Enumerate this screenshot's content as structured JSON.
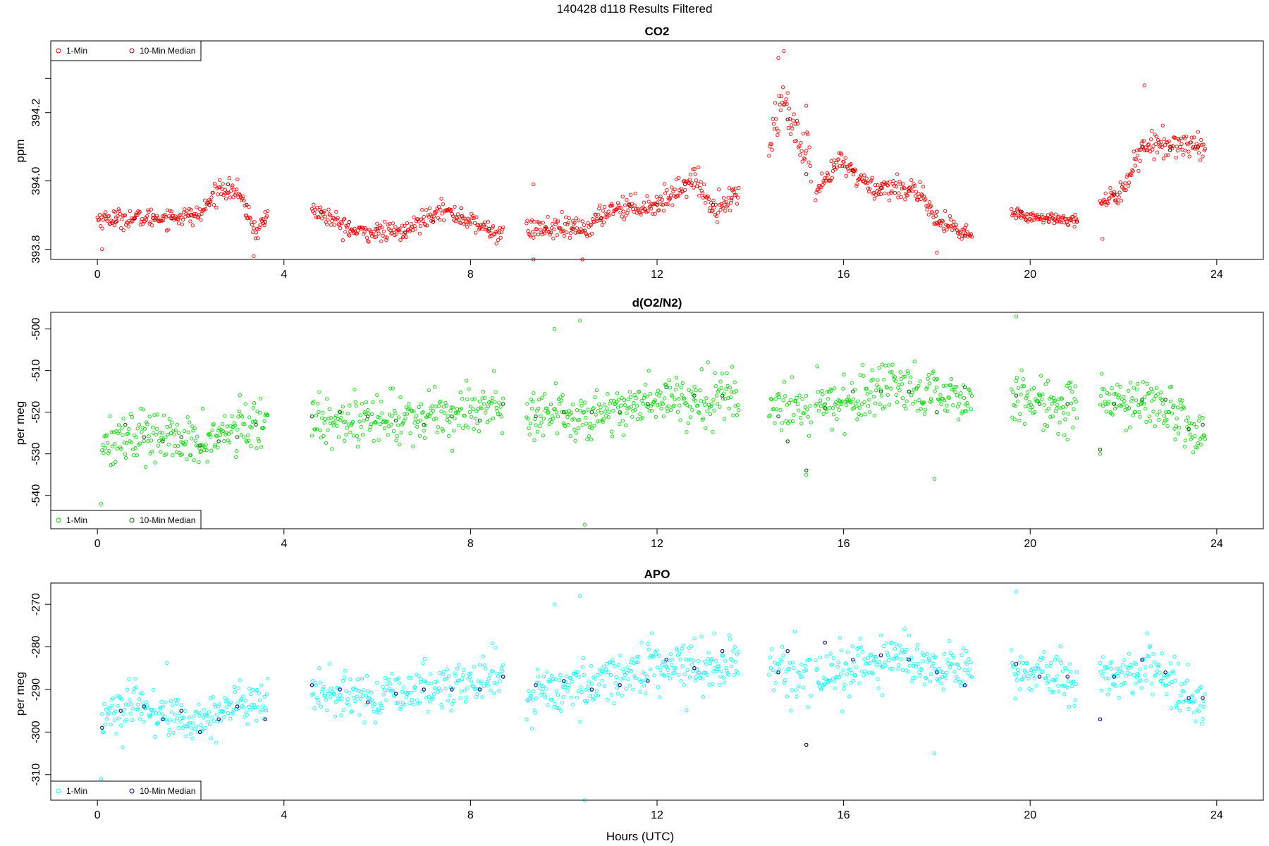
{
  "figure": {
    "title": "140428   d118   Results Filtered",
    "xlabel": "Hours (UTC)"
  },
  "chart_data": [
    {
      "type": "scatter",
      "title": "CO2",
      "ylabel": "ppm",
      "xlabel": "",
      "xlim": [
        -1.0,
        25.0
      ],
      "ylim": [
        393.77,
        394.41
      ],
      "x_ticks": [
        0,
        4,
        8,
        12,
        16,
        20,
        24
      ],
      "y_ticks": [
        393.8,
        394.0,
        394.2
      ],
      "y_tick_labels": [
        "393.8",
        "394.0",
        "394.2"
      ],
      "extra_y_ticks": [
        394.3
      ],
      "legend": {
        "placement": "top-left",
        "entries": [
          "1-Min",
          "10-Min Median"
        ]
      },
      "colors": {
        "one_min": "#ff0000",
        "median": "#8b0000"
      },
      "segments": [
        {
          "t0": 0.0,
          "t1": 3.65,
          "shape": [
            [
              0.0,
              393.89
            ],
            [
              1.0,
              393.89
            ],
            [
              2.2,
              393.9
            ],
            [
              2.6,
              393.98
            ],
            [
              3.0,
              393.97
            ],
            [
              3.4,
              393.85
            ],
            [
              3.65,
              393.9
            ]
          ],
          "noise": 0.025,
          "n": 210
        },
        {
          "t0": 4.6,
          "t1": 8.7,
          "shape": [
            [
              4.6,
              393.92
            ],
            [
              5.5,
              393.85
            ],
            [
              6.6,
              393.85
            ],
            [
              7.3,
              393.92
            ],
            [
              8.0,
              393.88
            ],
            [
              8.7,
              393.84
            ]
          ],
          "noise": 0.025,
          "n": 230
        },
        {
          "t0": 9.2,
          "t1": 13.75,
          "shape": [
            [
              9.2,
              393.86
            ],
            [
              10.5,
              393.86
            ],
            [
              11.0,
              393.92
            ],
            [
              12.0,
              393.93
            ],
            [
              12.8,
              394.01
            ],
            [
              13.2,
              393.92
            ],
            [
              13.75,
              393.96
            ]
          ],
          "noise": 0.03,
          "n": 270
        },
        {
          "t0": 14.4,
          "t1": 15.3,
          "shape": [
            [
              14.4,
              394.1
            ],
            [
              14.7,
              394.25
            ],
            [
              15.0,
              394.12
            ],
            [
              15.3,
              394.05
            ]
          ],
          "noise": 0.06,
          "n": 55
        },
        {
          "t0": 15.4,
          "t1": 18.75,
          "shape": [
            [
              15.4,
              393.95
            ],
            [
              15.9,
              394.06
            ],
            [
              16.6,
              393.98
            ],
            [
              17.5,
              393.98
            ],
            [
              18.0,
              393.88
            ],
            [
              18.75,
              393.84
            ]
          ],
          "noise": 0.03,
          "n": 200
        },
        {
          "t0": 19.6,
          "t1": 21.0,
          "shape": [
            [
              19.6,
              393.91
            ],
            [
              20.2,
              393.89
            ],
            [
              21.0,
              393.89
            ]
          ],
          "noise": 0.015,
          "n": 85
        },
        {
          "t0": 21.5,
          "t1": 23.75,
          "shape": [
            [
              21.5,
              393.92
            ],
            [
              22.0,
              393.98
            ],
            [
              22.4,
              394.1
            ],
            [
              23.2,
              394.11
            ],
            [
              23.75,
              394.1
            ]
          ],
          "noise": 0.035,
          "n": 135
        }
      ],
      "spikes": [
        [
          0.1,
          393.8
        ],
        [
          3.35,
          393.78
        ],
        [
          9.35,
          393.77
        ],
        [
          9.35,
          393.99
        ],
        [
          10.4,
          393.77
        ],
        [
          14.6,
          394.36
        ],
        [
          14.72,
          394.38
        ],
        [
          15.2,
          394.22
        ],
        [
          18.0,
          393.79
        ],
        [
          21.55,
          393.83
        ],
        [
          22.45,
          394.28
        ]
      ],
      "median_points": [
        [
          0.4,
          393.88
        ],
        [
          0.8,
          393.89
        ],
        [
          1.2,
          393.9
        ],
        [
          1.6,
          393.89
        ],
        [
          2.0,
          393.9
        ],
        [
          2.4,
          393.93
        ],
        [
          2.8,
          393.99
        ],
        [
          3.2,
          393.93
        ],
        [
          3.6,
          393.88
        ],
        [
          4.8,
          393.91
        ],
        [
          5.4,
          393.88
        ],
        [
          6.0,
          393.86
        ],
        [
          6.6,
          393.85
        ],
        [
          7.2,
          393.88
        ],
        [
          7.8,
          393.92
        ],
        [
          8.4,
          393.86
        ],
        [
          9.6,
          393.86
        ],
        [
          10.2,
          393.86
        ],
        [
          10.8,
          393.89
        ],
        [
          11.4,
          393.93
        ],
        [
          12.0,
          393.93
        ],
        [
          12.6,
          393.99
        ],
        [
          13.2,
          393.93
        ],
        [
          13.6,
          393.95
        ],
        [
          14.8,
          394.18
        ],
        [
          15.2,
          394.02
        ],
        [
          15.8,
          394.04
        ],
        [
          16.2,
          394.03
        ],
        [
          16.8,
          393.98
        ],
        [
          17.4,
          393.97
        ],
        [
          18.0,
          393.91
        ],
        [
          18.6,
          393.84
        ],
        [
          19.8,
          393.91
        ],
        [
          20.4,
          393.88
        ],
        [
          21.0,
          393.88
        ],
        [
          21.8,
          393.96
        ],
        [
          22.4,
          394.1
        ],
        [
          23.0,
          394.09
        ],
        [
          23.6,
          394.1
        ]
      ]
    },
    {
      "type": "scatter",
      "title": "d(O2/N2)",
      "ylabel": "per meg",
      "xlabel": "",
      "xlim": [
        -1.0,
        25.0
      ],
      "ylim": [
        -548.0,
        -496.0
      ],
      "x_ticks": [
        0,
        4,
        8,
        12,
        16,
        20,
        24
      ],
      "y_ticks": [
        -540,
        -530,
        -520,
        -510,
        -500
      ],
      "y_tick_labels": [
        "-540",
        "-530",
        "-520",
        "-510",
        "-500"
      ],
      "legend": {
        "placement": "bottom-left",
        "entries": [
          "1-Min",
          "10-Min Median"
        ]
      },
      "colors": {
        "one_min": "#00dd00",
        "median": "#006400"
      },
      "segments": [
        {
          "t0": 0.1,
          "t1": 3.65,
          "shape": [
            [
              0.1,
              -527
            ],
            [
              1.0,
              -525
            ],
            [
              2.0,
              -528
            ],
            [
              3.0,
              -524
            ],
            [
              3.65,
              -523
            ]
          ],
          "noise": 5.5,
          "n": 210
        },
        {
          "t0": 4.6,
          "t1": 8.7,
          "shape": [
            [
              4.6,
              -521
            ],
            [
              6.0,
              -522
            ],
            [
              7.0,
              -521
            ],
            [
              8.7,
              -518
            ]
          ],
          "noise": 5.5,
          "n": 230
        },
        {
          "t0": 9.2,
          "t1": 13.75,
          "shape": [
            [
              9.2,
              -520
            ],
            [
              10.5,
              -521
            ],
            [
              12.0,
              -517
            ],
            [
              13.75,
              -516
            ]
          ],
          "noise": 5.5,
          "n": 270
        },
        {
          "t0": 14.4,
          "t1": 15.3,
          "shape": [
            [
              14.4,
              -518
            ],
            [
              15.3,
              -520
            ]
          ],
          "noise": 6,
          "n": 45
        },
        {
          "t0": 15.4,
          "t1": 18.75,
          "shape": [
            [
              15.4,
              -518
            ],
            [
              17.0,
              -515
            ],
            [
              18.75,
              -517
            ]
          ],
          "noise": 5.5,
          "n": 200
        },
        {
          "t0": 19.6,
          "t1": 21.0,
          "shape": [
            [
              19.6,
              -516
            ],
            [
              21.0,
              -519
            ]
          ],
          "noise": 5,
          "n": 85
        },
        {
          "t0": 21.5,
          "t1": 23.75,
          "shape": [
            [
              21.5,
              -518
            ],
            [
              22.5,
              -517
            ],
            [
              23.75,
              -525
            ]
          ],
          "noise": 5.5,
          "n": 135
        }
      ],
      "spikes": [
        [
          0.08,
          -542
        ],
        [
          9.8,
          -500
        ],
        [
          10.35,
          -498
        ],
        [
          10.45,
          -547
        ],
        [
          15.2,
          -535
        ],
        [
          17.95,
          -536
        ],
        [
          19.7,
          -497
        ],
        [
          21.5,
          -530
        ]
      ],
      "median_points": [
        [
          0.6,
          -523
        ],
        [
          1.0,
          -526
        ],
        [
          1.4,
          -527
        ],
        [
          1.8,
          -526
        ],
        [
          2.2,
          -528
        ],
        [
          2.6,
          -527
        ],
        [
          3.0,
          -526
        ],
        [
          3.4,
          -523
        ],
        [
          4.6,
          -521
        ],
        [
          5.2,
          -520
        ],
        [
          5.8,
          -521
        ],
        [
          6.4,
          -522
        ],
        [
          7.0,
          -523
        ],
        [
          7.6,
          -521
        ],
        [
          8.2,
          -522
        ],
        [
          8.7,
          -518
        ],
        [
          9.4,
          -521
        ],
        [
          10.0,
          -520
        ],
        [
          10.6,
          -520
        ],
        [
          11.2,
          -520
        ],
        [
          11.8,
          -518
        ],
        [
          12.2,
          -514
        ],
        [
          12.8,
          -516
        ],
        [
          13.4,
          -516
        ],
        [
          14.6,
          -521
        ],
        [
          14.8,
          -527
        ],
        [
          15.2,
          -534
        ],
        [
          15.6,
          -519
        ],
        [
          16.2,
          -515
        ],
        [
          16.8,
          -515
        ],
        [
          17.4,
          -515
        ],
        [
          18.0,
          -520
        ],
        [
          18.6,
          -514
        ],
        [
          19.7,
          -516
        ],
        [
          20.2,
          -518
        ],
        [
          20.8,
          -518
        ],
        [
          21.5,
          -529
        ],
        [
          21.8,
          -518
        ],
        [
          22.4,
          -517
        ],
        [
          22.9,
          -517
        ],
        [
          23.4,
          -524
        ],
        [
          23.7,
          -523
        ]
      ]
    },
    {
      "type": "scatter",
      "title": "APO",
      "ylabel": "per meg",
      "xlabel": "",
      "xlim": [
        -1.0,
        25.0
      ],
      "ylim": [
        -316.0,
        -265.0
      ],
      "x_ticks": [
        0,
        4,
        8,
        12,
        16,
        20,
        24
      ],
      "y_ticks": [
        -310,
        -300,
        -290,
        -280,
        -270
      ],
      "y_tick_labels": [
        "-310",
        "-300",
        "-290",
        "-280",
        "-270"
      ],
      "legend": {
        "placement": "bottom-left",
        "entries": [
          "1-Min",
          "10-Min Median"
        ]
      },
      "colors": {
        "one_min": "#00ffff",
        "median": "#00008b"
      },
      "segments": [
        {
          "t0": 0.1,
          "t1": 3.65,
          "shape": [
            [
              0.1,
              -296
            ],
            [
              1.0,
              -294
            ],
            [
              2.0,
              -298
            ],
            [
              3.0,
              -293
            ],
            [
              3.65,
              -294
            ]
          ],
          "noise": 5,
          "n": 210
        },
        {
          "t0": 4.6,
          "t1": 8.7,
          "shape": [
            [
              4.6,
              -291
            ],
            [
              6.0,
              -292
            ],
            [
              7.0,
              -290
            ],
            [
              8.7,
              -287
            ]
          ],
          "noise": 5,
          "n": 230
        },
        {
          "t0": 9.2,
          "t1": 13.75,
          "shape": [
            [
              9.2,
              -291
            ],
            [
              10.5,
              -289
            ],
            [
              12.0,
              -284
            ],
            [
              13.75,
              -284
            ]
          ],
          "noise": 5,
          "n": 270
        },
        {
          "t0": 14.4,
          "t1": 15.3,
          "shape": [
            [
              14.4,
              -286
            ],
            [
              15.3,
              -286
            ]
          ],
          "noise": 6,
          "n": 45
        },
        {
          "t0": 15.4,
          "t1": 18.75,
          "shape": [
            [
              15.4,
              -287
            ],
            [
              17.0,
              -283
            ],
            [
              18.75,
              -285
            ]
          ],
          "noise": 5,
          "n": 200
        },
        {
          "t0": 19.6,
          "t1": 21.0,
          "shape": [
            [
              19.6,
              -285
            ],
            [
              21.0,
              -288
            ]
          ],
          "noise": 5,
          "n": 85
        },
        {
          "t0": 21.5,
          "t1": 23.75,
          "shape": [
            [
              21.5,
              -287
            ],
            [
              22.5,
              -285
            ],
            [
              23.75,
              -293
            ]
          ],
          "noise": 5,
          "n": 135
        }
      ],
      "spikes": [
        [
          0.08,
          -311
        ],
        [
          9.8,
          -270
        ],
        [
          10.35,
          -268
        ],
        [
          10.45,
          -316
        ],
        [
          15.2,
          -303
        ],
        [
          17.95,
          -305
        ],
        [
          19.7,
          -267
        ],
        [
          21.5,
          -297
        ]
      ],
      "median_points": [
        [
          0.1,
          -299
        ],
        [
          0.5,
          -295
        ],
        [
          1.0,
          -294
        ],
        [
          1.4,
          -297
        ],
        [
          1.8,
          -295
        ],
        [
          2.2,
          -300
        ],
        [
          2.6,
          -297
        ],
        [
          3.0,
          -294
        ],
        [
          3.6,
          -297
        ],
        [
          4.6,
          -289
        ],
        [
          5.2,
          -290
        ],
        [
          5.8,
          -293
        ],
        [
          6.4,
          -291
        ],
        [
          7.0,
          -290
        ],
        [
          7.6,
          -290
        ],
        [
          8.2,
          -290
        ],
        [
          8.7,
          -287
        ],
        [
          9.4,
          -289
        ],
        [
          10.0,
          -288
        ],
        [
          10.6,
          -290
        ],
        [
          11.2,
          -289
        ],
        [
          11.8,
          -288
        ],
        [
          12.2,
          -283
        ],
        [
          12.8,
          -285
        ],
        [
          13.4,
          -281
        ],
        [
          14.6,
          -286
        ],
        [
          14.8,
          -281
        ],
        [
          15.2,
          -303
        ],
        [
          15.6,
          -279
        ],
        [
          16.2,
          -283
        ],
        [
          16.8,
          -282
        ],
        [
          17.4,
          -283
        ],
        [
          18.0,
          -286
        ],
        [
          18.6,
          -289
        ],
        [
          19.7,
          -284
        ],
        [
          20.2,
          -287
        ],
        [
          20.8,
          -287
        ],
        [
          21.5,
          -297
        ],
        [
          21.8,
          -287
        ],
        [
          22.4,
          -283
        ],
        [
          22.9,
          -286
        ],
        [
          23.4,
          -292
        ],
        [
          23.7,
          -292
        ]
      ]
    }
  ]
}
